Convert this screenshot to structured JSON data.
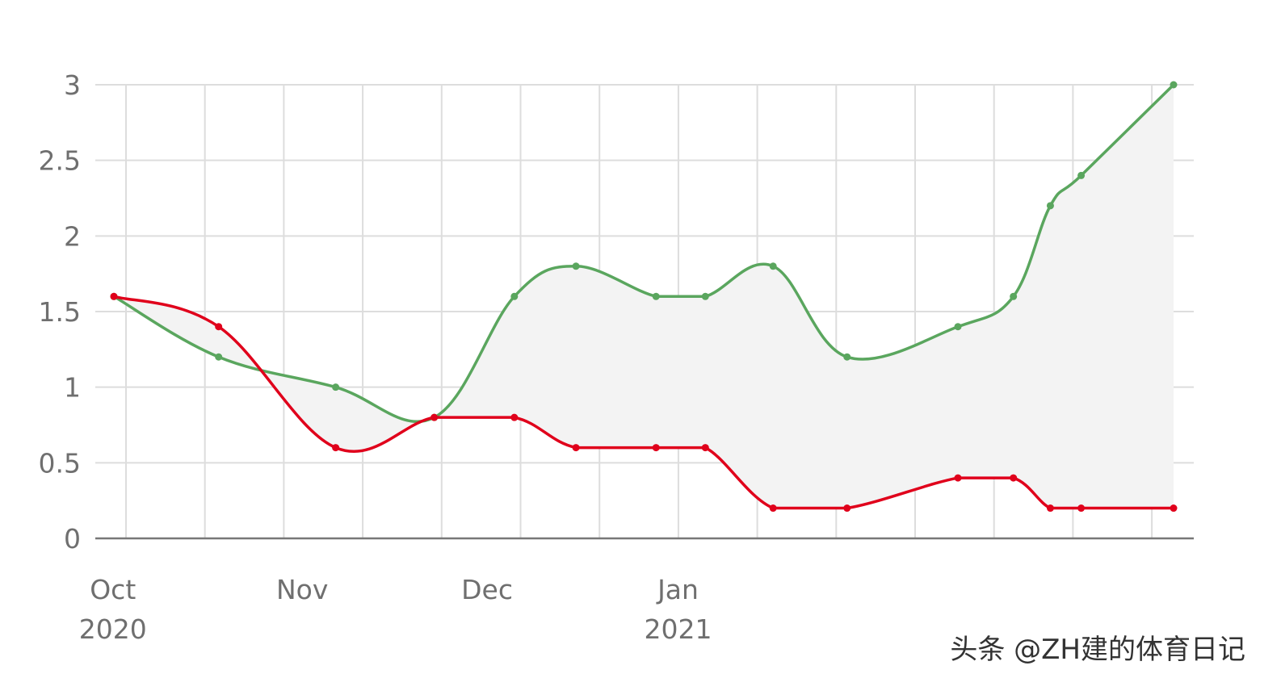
{
  "chart_data": {
    "type": "line",
    "x": [
      "2020-10-03",
      "2020-10-20",
      "2020-11-08",
      "2020-11-24",
      "2020-12-07",
      "2020-12-17",
      "2020-12-30",
      "2021-01-07",
      "2021-01-18",
      "2021-01-30",
      "2021-02-17",
      "2021-02-26",
      "2021-03-04",
      "2021-03-09",
      "2021-03-24"
    ],
    "series": [
      {
        "values": [
          1.6,
          1.2,
          1.0,
          0.8,
          1.6,
          1.8,
          1.6,
          1.6,
          1.8,
          1.2,
          1.4,
          1.6,
          2.2,
          2.4,
          3.0
        ]
      },
      {
        "values": [
          1.6,
          1.4,
          0.6,
          0.8,
          0.8,
          0.6,
          0.6,
          0.6,
          0.2,
          0.2,
          0.4,
          0.4,
          0.2,
          0.2,
          0.2
        ]
      }
    ],
    "ylim": [
      0,
      3
    ],
    "yticks": [
      "0",
      "0.5",
      "1",
      "1.5",
      "2",
      "2.5",
      "3"
    ],
    "xtick_labels": [
      {
        "date": "2020-10-01",
        "line1": "Oct",
        "line2": "2020"
      },
      {
        "date": "2020-11-01",
        "line1": "Nov",
        "line2": ""
      },
      {
        "date": "2020-12-01",
        "line1": "Dec",
        "line2": ""
      },
      {
        "date": "2021-01-01",
        "line1": "Jan",
        "line2": "2021"
      }
    ],
    "colors": {
      "green": "#5aa65e",
      "red": "#e0001b",
      "fill": "#f3f3f3",
      "grid": "#dddddd",
      "axis": "#777777"
    },
    "grid": true
  },
  "watermark": "头条 @ZH建的体育日记"
}
